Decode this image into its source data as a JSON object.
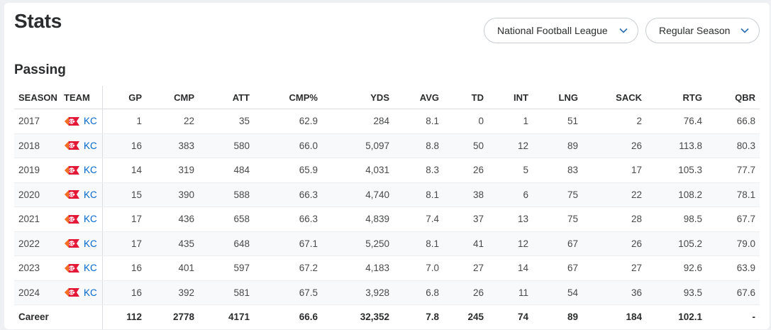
{
  "page": {
    "title": "Stats",
    "section_title": "Passing"
  },
  "filters": {
    "league": "National Football League",
    "season_type": "Regular Season"
  },
  "colors": {
    "link": "#0066cc",
    "team_red": "#e31837",
    "team_gold": "#ffb612"
  },
  "table": {
    "columns": [
      "SEASON",
      "TEAM",
      "GP",
      "CMP",
      "ATT",
      "CMP%",
      "YDS",
      "AVG",
      "TD",
      "INT",
      "LNG",
      "SACK",
      "RTG",
      "QBR"
    ],
    "rows": [
      {
        "season": "2017",
        "team": "KC",
        "gp": "1",
        "cmp": "22",
        "att": "35",
        "cmp_pct": "62.9",
        "yds": "284",
        "avg": "8.1",
        "td": "0",
        "int": "1",
        "lng": "51",
        "sack": "2",
        "rtg": "76.4",
        "qbr": "66.8"
      },
      {
        "season": "2018",
        "team": "KC",
        "gp": "16",
        "cmp": "383",
        "att": "580",
        "cmp_pct": "66.0",
        "yds": "5,097",
        "avg": "8.8",
        "td": "50",
        "int": "12",
        "lng": "89",
        "sack": "26",
        "rtg": "113.8",
        "qbr": "80.3"
      },
      {
        "season": "2019",
        "team": "KC",
        "gp": "14",
        "cmp": "319",
        "att": "484",
        "cmp_pct": "65.9",
        "yds": "4,031",
        "avg": "8.3",
        "td": "26",
        "int": "5",
        "lng": "83",
        "sack": "17",
        "rtg": "105.3",
        "qbr": "77.7"
      },
      {
        "season": "2020",
        "team": "KC",
        "gp": "15",
        "cmp": "390",
        "att": "588",
        "cmp_pct": "66.3",
        "yds": "4,740",
        "avg": "8.1",
        "td": "38",
        "int": "6",
        "lng": "75",
        "sack": "22",
        "rtg": "108.2",
        "qbr": "78.1"
      },
      {
        "season": "2021",
        "team": "KC",
        "gp": "17",
        "cmp": "436",
        "att": "658",
        "cmp_pct": "66.3",
        "yds": "4,839",
        "avg": "7.4",
        "td": "37",
        "int": "13",
        "lng": "75",
        "sack": "28",
        "rtg": "98.5",
        "qbr": "67.7"
      },
      {
        "season": "2022",
        "team": "KC",
        "gp": "17",
        "cmp": "435",
        "att": "648",
        "cmp_pct": "67.1",
        "yds": "5,250",
        "avg": "8.1",
        "td": "41",
        "int": "12",
        "lng": "67",
        "sack": "26",
        "rtg": "105.2",
        "qbr": "79.0"
      },
      {
        "season": "2023",
        "team": "KC",
        "gp": "16",
        "cmp": "401",
        "att": "597",
        "cmp_pct": "67.2",
        "yds": "4,183",
        "avg": "7.0",
        "td": "27",
        "int": "14",
        "lng": "67",
        "sack": "27",
        "rtg": "92.6",
        "qbr": "63.9"
      },
      {
        "season": "2024",
        "team": "KC",
        "gp": "16",
        "cmp": "392",
        "att": "581",
        "cmp_pct": "67.5",
        "yds": "3,928",
        "avg": "6.8",
        "td": "26",
        "int": "11",
        "lng": "54",
        "sack": "36",
        "rtg": "93.5",
        "qbr": "67.6"
      }
    ],
    "career": {
      "label": "Career",
      "gp": "112",
      "cmp": "2778",
      "att": "4171",
      "cmp_pct": "66.6",
      "yds": "32,352",
      "avg": "7.8",
      "td": "245",
      "int": "74",
      "lng": "89",
      "sack": "184",
      "rtg": "102.1",
      "qbr": "-"
    },
    "team_logo_icon": "chiefs-arrowhead-logo"
  }
}
